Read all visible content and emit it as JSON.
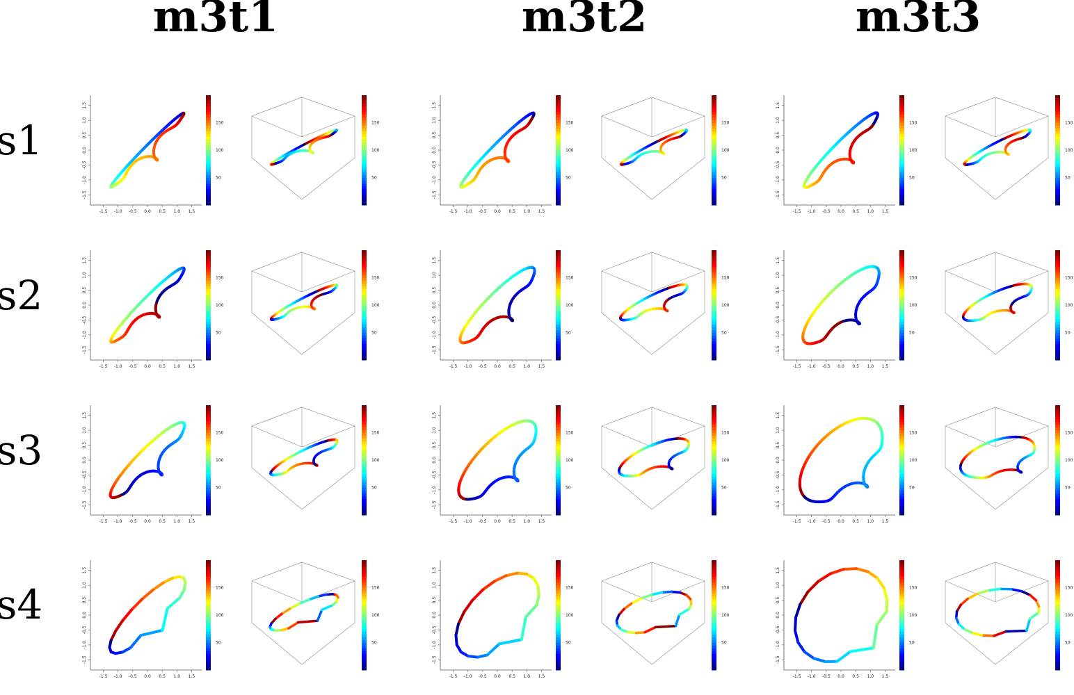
{
  "column_titles": [
    "m3t1",
    "m3t2",
    "m3t3"
  ],
  "row_labels": [
    "s1",
    "s2",
    "s3",
    "s4"
  ],
  "chart_data": {
    "type": "line",
    "description_of_panels": "Each cell contains a 2D trajectory plot and a 3D perspective plot; segment color encodes a value on a jet colour scale shown by the colourbar.",
    "xlim": [
      -1.75,
      1.75
    ],
    "ylim": [
      -1.75,
      1.75
    ],
    "x_ticks": [
      "-1.5",
      "-1.0",
      "-0.5",
      "0.0",
      "0.5",
      "1.0",
      "1.5"
    ],
    "y_ticks": [
      "-1.5",
      "-1.0",
      "-0.5",
      "0.0",
      "0.5",
      "1.0",
      "1.5"
    ],
    "colorbar": {
      "range": [
        0,
        200
      ],
      "ticks": [
        "50",
        "100",
        "150"
      ],
      "colormap": "jet"
    },
    "panels": [
      {
        "row": "s1",
        "col": "m3t1",
        "loop_width": 0.08,
        "spread": 0.04,
        "color_shift": 0.0,
        "smooth": true
      },
      {
        "row": "s1",
        "col": "m3t2",
        "loop_width": 0.12,
        "spread": 0.06,
        "color_shift": 0.05,
        "smooth": true
      },
      {
        "row": "s1",
        "col": "m3t3",
        "loop_width": 0.16,
        "spread": 0.08,
        "color_shift": 0.1,
        "smooth": true
      },
      {
        "row": "s2",
        "col": "m3t1",
        "loop_width": 0.14,
        "spread": 0.06,
        "color_shift": 0.2,
        "smooth": true
      },
      {
        "row": "s2",
        "col": "m3t2",
        "loop_width": 0.24,
        "spread": 0.12,
        "color_shift": 0.25,
        "smooth": true
      },
      {
        "row": "s2",
        "col": "m3t3",
        "loop_width": 0.34,
        "spread": 0.16,
        "color_shift": 0.3,
        "smooth": true
      },
      {
        "row": "s3",
        "col": "m3t1",
        "loop_width": 0.22,
        "spread": 0.12,
        "color_shift": 0.4,
        "smooth": true
      },
      {
        "row": "s3",
        "col": "m3t2",
        "loop_width": 0.4,
        "spread": 0.2,
        "color_shift": 0.45,
        "smooth": true
      },
      {
        "row": "s3",
        "col": "m3t3",
        "loop_width": 0.58,
        "spread": 0.3,
        "color_shift": 0.5,
        "smooth": true
      },
      {
        "row": "s4",
        "col": "m3t1",
        "loop_width": 0.32,
        "spread": 0.18,
        "color_shift": 0.6,
        "smooth": false
      },
      {
        "row": "s4",
        "col": "m3t2",
        "loop_width": 0.6,
        "spread": 0.32,
        "color_shift": 0.65,
        "smooth": false
      },
      {
        "row": "s4",
        "col": "m3t3",
        "loop_width": 0.85,
        "spread": 0.45,
        "color_shift": 0.7,
        "smooth": false
      }
    ]
  }
}
